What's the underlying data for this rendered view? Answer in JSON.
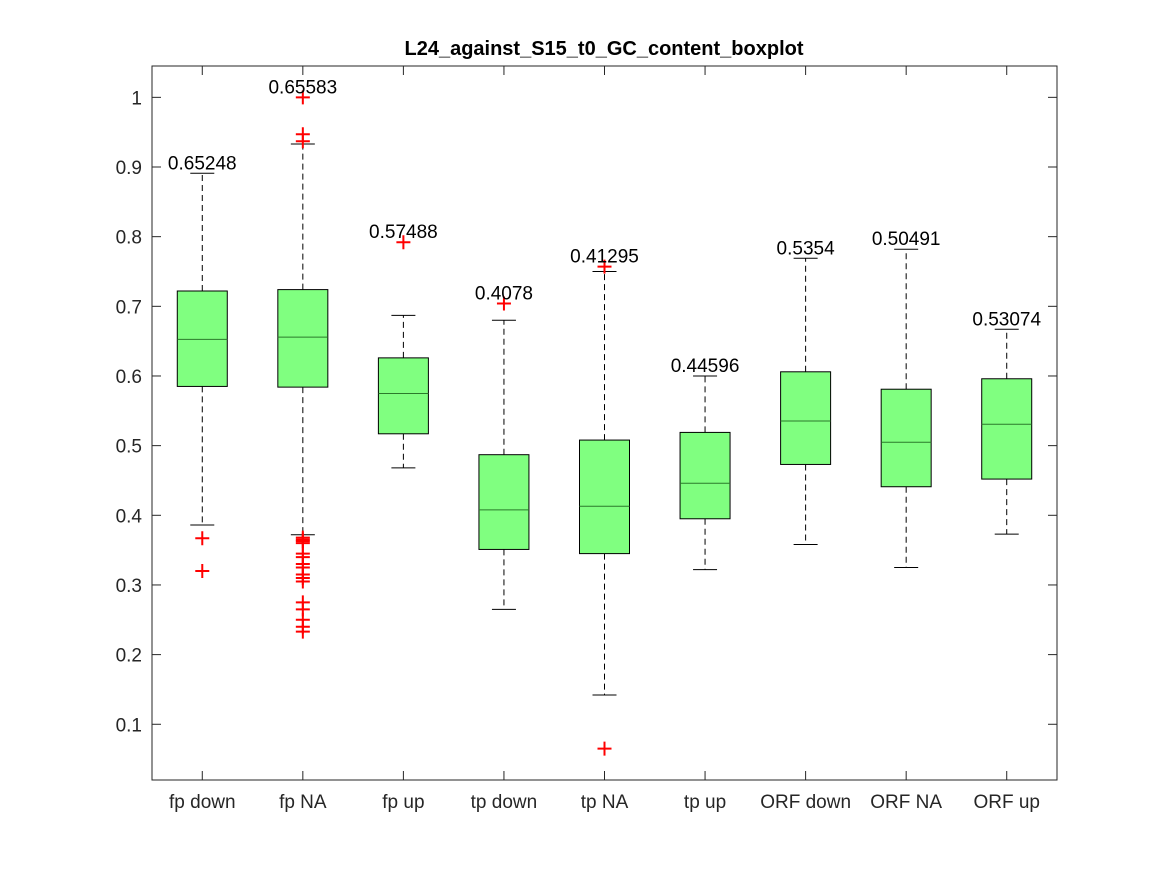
{
  "chart_data": {
    "type": "boxplot",
    "title": "L24_against_S15_t0_GC_content_boxplot",
    "xlabel": "",
    "ylabel": "",
    "ylim": [
      0.02,
      1.045
    ],
    "yticks": [
      0.1,
      0.2,
      0.3,
      0.4,
      0.5,
      0.6,
      0.7,
      0.8,
      0.9,
      1
    ],
    "y_tick_labels": [
      "0.1",
      "0.2",
      "0.3",
      "0.4",
      "0.5",
      "0.6",
      "0.7",
      "0.8",
      "0.9",
      "1"
    ],
    "grid": false,
    "box_color": "#80ff80",
    "outlier_color": "#ff0000",
    "categories": [
      "fp down",
      "fp NA",
      "fp up",
      "tp down",
      "tp NA",
      "tp up",
      "ORF down",
      "ORF NA",
      "ORF up"
    ],
    "boxes": [
      {
        "label": "fp down",
        "whisker_low": 0.386,
        "q1": 0.585,
        "median": 0.65248,
        "q3": 0.722,
        "whisker_high": 0.891,
        "median_label": "0.65248",
        "outliers": [
          0.367,
          0.32
        ]
      },
      {
        "label": "fp NA",
        "whisker_low": 0.372,
        "q1": 0.584,
        "median": 0.65583,
        "q3": 0.724,
        "whisker_high": 0.933,
        "median_label": "0.65583",
        "outliers": [
          1.0,
          0.947,
          0.937,
          0.368,
          0.365,
          0.363,
          0.36,
          0.345,
          0.34,
          0.33,
          0.325,
          0.315,
          0.31,
          0.305,
          0.275,
          0.265,
          0.25,
          0.24,
          0.233
        ]
      },
      {
        "label": "fp up",
        "whisker_low": 0.468,
        "q1": 0.517,
        "median": 0.57488,
        "q3": 0.626,
        "whisker_high": 0.687,
        "median_label": "0.57488",
        "outliers": [
          0.792
        ]
      },
      {
        "label": "tp down",
        "whisker_low": 0.265,
        "q1": 0.351,
        "median": 0.4078,
        "q3": 0.487,
        "whisker_high": 0.68,
        "median_label": "0.4078",
        "outliers": [
          0.704
        ]
      },
      {
        "label": "tp NA",
        "whisker_low": 0.142,
        "q1": 0.345,
        "median": 0.41295,
        "q3": 0.508,
        "whisker_high": 0.75,
        "median_label": "0.41295",
        "outliers": [
          0.757,
          0.065
        ]
      },
      {
        "label": "tp up",
        "whisker_low": 0.322,
        "q1": 0.395,
        "median": 0.44596,
        "q3": 0.519,
        "whisker_high": 0.6,
        "median_label": "0.44596",
        "outliers": []
      },
      {
        "label": "ORF down",
        "whisker_low": 0.358,
        "q1": 0.473,
        "median": 0.5354,
        "q3": 0.606,
        "whisker_high": 0.769,
        "median_label": "0.5354",
        "outliers": []
      },
      {
        "label": "ORF NA",
        "whisker_low": 0.325,
        "q1": 0.441,
        "median": 0.50491,
        "q3": 0.581,
        "whisker_high": 0.782,
        "median_label": "0.50491",
        "outliers": []
      },
      {
        "label": "ORF up",
        "whisker_low": 0.373,
        "q1": 0.452,
        "median": 0.53074,
        "q3": 0.596,
        "whisker_high": 0.667,
        "median_label": "0.53074",
        "outliers": []
      }
    ]
  }
}
